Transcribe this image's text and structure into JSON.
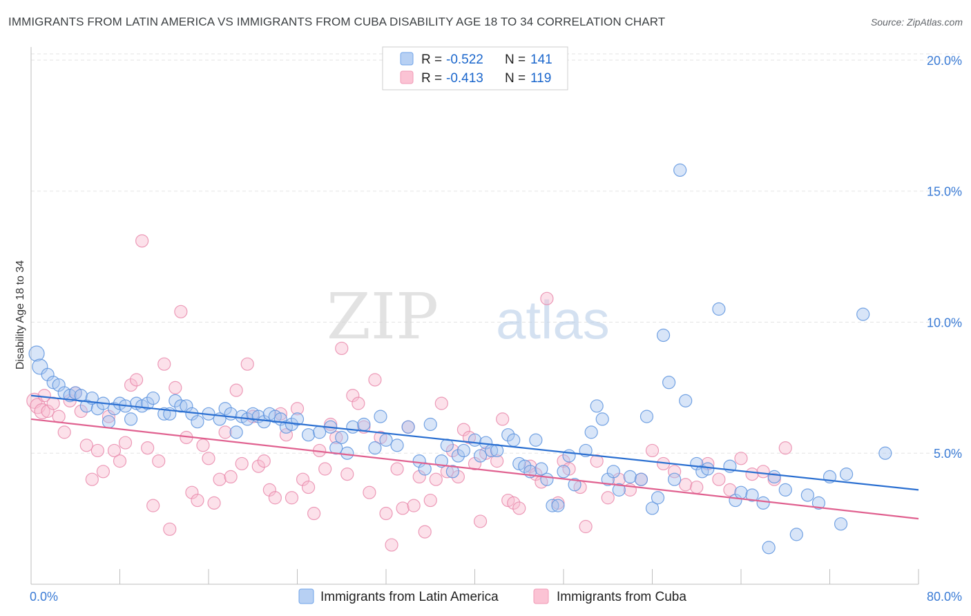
{
  "header": {
    "title": "IMMIGRANTS FROM LATIN AMERICA VS IMMIGRANTS FROM CUBA DISABILITY AGE 18 TO 34 CORRELATION CHART",
    "source": "Source: ZipAtlas.com"
  },
  "watermark": {
    "part1": "ZIP",
    "part2": "atlas"
  },
  "stats": [
    {
      "r_label": "R =",
      "r_value": "-0.522",
      "n_label": "N =",
      "n_value": "141"
    },
    {
      "r_label": "R =",
      "r_value": "-0.413",
      "n_label": "N =",
      "n_value": "119"
    }
  ],
  "chart_data": {
    "type": "scatter",
    "title": "IMMIGRANTS FROM LATIN AMERICA VS IMMIGRANTS FROM CUBA DISABILITY AGE 18 TO 34 CORRELATION CHART",
    "xlabel": "",
    "ylabel": "Disability Age 18 to 34",
    "xlim": [
      0,
      80
    ],
    "ylim": [
      0,
      20.5
    ],
    "x_tick_labels": [
      "0.0%",
      "80.0%"
    ],
    "y_ticks": [
      5,
      10,
      15,
      20
    ],
    "y_tick_labels": [
      "5.0%",
      "10.0%",
      "15.0%",
      "20.0%"
    ],
    "grid": true,
    "legend_position": "bottom-center",
    "colors": {
      "Immigrants from Latin America": "#6fa3e8",
      "Immigrants from Cuba": "#f09ab6",
      "trend_latin": "#2a6fd1",
      "trend_cuba": "#e0608f",
      "axis_text": "#3a7bd5"
    },
    "series": [
      {
        "name": "Immigrants from Latin America",
        "trend": [
          [
            0,
            7.2
          ],
          [
            80,
            3.6
          ]
        ],
        "points": [
          [
            0.5,
            8.8
          ],
          [
            0.8,
            8.3
          ],
          [
            1.5,
            8.0
          ],
          [
            2.0,
            7.7
          ],
          [
            2.5,
            7.6
          ],
          [
            3.0,
            7.3
          ],
          [
            3.5,
            7.2
          ],
          [
            4.0,
            7.3
          ],
          [
            4.5,
            7.2
          ],
          [
            5.0,
            6.8
          ],
          [
            5.5,
            7.1
          ],
          [
            6.0,
            6.7
          ],
          [
            6.5,
            6.9
          ],
          [
            7.0,
            6.2
          ],
          [
            7.5,
            6.7
          ],
          [
            8.0,
            6.9
          ],
          [
            8.5,
            6.8
          ],
          [
            9.0,
            6.3
          ],
          [
            9.5,
            6.9
          ],
          [
            10.0,
            6.8
          ],
          [
            10.5,
            6.9
          ],
          [
            11.0,
            7.1
          ],
          [
            12.0,
            6.5
          ],
          [
            12.5,
            6.5
          ],
          [
            13.0,
            7.0
          ],
          [
            13.5,
            6.8
          ],
          [
            14.0,
            6.8
          ],
          [
            14.5,
            6.5
          ],
          [
            15.0,
            6.2
          ],
          [
            16.0,
            6.5
          ],
          [
            17.0,
            6.3
          ],
          [
            17.5,
            6.7
          ],
          [
            18.0,
            6.5
          ],
          [
            18.5,
            5.8
          ],
          [
            19.0,
            6.4
          ],
          [
            19.5,
            6.3
          ],
          [
            20.0,
            6.5
          ],
          [
            20.5,
            6.4
          ],
          [
            21.0,
            6.2
          ],
          [
            21.5,
            6.5
          ],
          [
            22.0,
            6.4
          ],
          [
            22.5,
            6.3
          ],
          [
            23.0,
            6.0
          ],
          [
            23.5,
            6.1
          ],
          [
            24.0,
            6.3
          ],
          [
            25.0,
            5.7
          ],
          [
            26.0,
            5.8
          ],
          [
            27.0,
            6.0
          ],
          [
            27.5,
            5.2
          ],
          [
            28.0,
            5.6
          ],
          [
            28.5,
            5.0
          ],
          [
            29.0,
            6.0
          ],
          [
            30.0,
            6.1
          ],
          [
            31.0,
            5.2
          ],
          [
            31.5,
            6.4
          ],
          [
            32.0,
            5.5
          ],
          [
            33.0,
            5.3
          ],
          [
            34.0,
            6.0
          ],
          [
            35.0,
            4.7
          ],
          [
            35.5,
            4.4
          ],
          [
            36.0,
            6.1
          ],
          [
            37.0,
            4.7
          ],
          [
            37.5,
            5.3
          ],
          [
            38.0,
            4.3
          ],
          [
            38.5,
            4.9
          ],
          [
            39.0,
            5.1
          ],
          [
            40.0,
            5.5
          ],
          [
            40.5,
            4.9
          ],
          [
            41.0,
            5.4
          ],
          [
            41.5,
            5.1
          ],
          [
            42.0,
            5.1
          ],
          [
            43.0,
            5.7
          ],
          [
            43.5,
            5.5
          ],
          [
            44.0,
            4.6
          ],
          [
            44.5,
            4.5
          ],
          [
            45.0,
            4.3
          ],
          [
            45.5,
            5.5
          ],
          [
            46.0,
            4.4
          ],
          [
            46.5,
            4.0
          ],
          [
            47.0,
            3.0
          ],
          [
            47.5,
            3.0
          ],
          [
            48.0,
            4.3
          ],
          [
            48.5,
            4.9
          ],
          [
            49.0,
            3.8
          ],
          [
            50.0,
            5.1
          ],
          [
            50.5,
            5.8
          ],
          [
            51.0,
            6.8
          ],
          [
            51.5,
            6.3
          ],
          [
            52.0,
            4.0
          ],
          [
            52.5,
            4.3
          ],
          [
            53.0,
            3.6
          ],
          [
            54.0,
            4.1
          ],
          [
            55.0,
            4.0
          ],
          [
            55.5,
            6.4
          ],
          [
            56.0,
            2.9
          ],
          [
            56.5,
            3.3
          ],
          [
            57.0,
            9.5
          ],
          [
            57.5,
            7.7
          ],
          [
            58.0,
            4.0
          ],
          [
            58.5,
            15.8
          ],
          [
            59.0,
            7.0
          ],
          [
            60.0,
            4.6
          ],
          [
            60.5,
            4.3
          ],
          [
            61.0,
            4.4
          ],
          [
            62.0,
            10.5
          ],
          [
            63.0,
            4.5
          ],
          [
            63.5,
            3.2
          ],
          [
            64.0,
            3.5
          ],
          [
            65.0,
            3.4
          ],
          [
            66.0,
            3.1
          ],
          [
            66.5,
            1.4
          ],
          [
            67.0,
            4.1
          ],
          [
            68.0,
            3.6
          ],
          [
            69.0,
            1.9
          ],
          [
            70.0,
            3.4
          ],
          [
            71.0,
            3.1
          ],
          [
            72.0,
            4.1
          ],
          [
            73.0,
            2.3
          ],
          [
            73.5,
            4.2
          ],
          [
            75.0,
            10.3
          ],
          [
            77.0,
            5.0
          ]
        ]
      },
      {
        "name": "Immigrants from Cuba",
        "trend": [
          [
            0,
            6.3
          ],
          [
            80,
            2.5
          ]
        ],
        "points": [
          [
            0.3,
            7.0
          ],
          [
            0.6,
            6.8
          ],
          [
            1.0,
            6.6
          ],
          [
            1.2,
            7.2
          ],
          [
            1.5,
            6.6
          ],
          [
            2.0,
            6.9
          ],
          [
            2.5,
            6.4
          ],
          [
            3.0,
            5.8
          ],
          [
            3.5,
            7.0
          ],
          [
            4.0,
            7.3
          ],
          [
            4.5,
            6.6
          ],
          [
            5.0,
            5.3
          ],
          [
            5.5,
            4.0
          ],
          [
            6.0,
            5.1
          ],
          [
            6.5,
            4.3
          ],
          [
            7.0,
            6.4
          ],
          [
            7.5,
            5.1
          ],
          [
            8.0,
            4.7
          ],
          [
            8.5,
            5.4
          ],
          [
            9.0,
            7.6
          ],
          [
            9.5,
            7.8
          ],
          [
            10.0,
            13.1
          ],
          [
            10.5,
            5.2
          ],
          [
            11.0,
            3.0
          ],
          [
            11.5,
            4.7
          ],
          [
            12.0,
            8.4
          ],
          [
            12.5,
            2.1
          ],
          [
            13.0,
            7.5
          ],
          [
            13.5,
            10.4
          ],
          [
            14.0,
            5.6
          ],
          [
            14.5,
            3.5
          ],
          [
            15.0,
            3.2
          ],
          [
            15.5,
            5.3
          ],
          [
            16.0,
            4.8
          ],
          [
            16.5,
            3.1
          ],
          [
            17.0,
            4.0
          ],
          [
            17.5,
            5.8
          ],
          [
            18.0,
            4.1
          ],
          [
            18.5,
            7.4
          ],
          [
            19.0,
            4.6
          ],
          [
            19.5,
            8.4
          ],
          [
            20.0,
            6.4
          ],
          [
            20.5,
            4.5
          ],
          [
            21.0,
            4.7
          ],
          [
            21.5,
            3.6
          ],
          [
            22.0,
            3.3
          ],
          [
            22.5,
            6.5
          ],
          [
            23.0,
            5.7
          ],
          [
            23.5,
            3.3
          ],
          [
            24.0,
            6.7
          ],
          [
            24.5,
            4.0
          ],
          [
            25.0,
            3.7
          ],
          [
            25.5,
            2.7
          ],
          [
            26.0,
            5.1
          ],
          [
            26.5,
            4.4
          ],
          [
            27.0,
            6.1
          ],
          [
            27.5,
            5.6
          ],
          [
            28.0,
            9.0
          ],
          [
            28.5,
            4.2
          ],
          [
            29.0,
            7.2
          ],
          [
            29.5,
            6.9
          ],
          [
            30.0,
            6.0
          ],
          [
            30.5,
            3.5
          ],
          [
            31.0,
            7.8
          ],
          [
            31.5,
            5.6
          ],
          [
            32.0,
            2.7
          ],
          [
            32.5,
            1.5
          ],
          [
            33.0,
            4.4
          ],
          [
            33.5,
            2.9
          ],
          [
            34.0,
            6.0
          ],
          [
            34.5,
            3.0
          ],
          [
            35.0,
            4.1
          ],
          [
            35.5,
            2.0
          ],
          [
            36.0,
            3.2
          ],
          [
            36.5,
            4.0
          ],
          [
            37.0,
            6.9
          ],
          [
            37.5,
            4.3
          ],
          [
            38.0,
            5.1
          ],
          [
            38.5,
            4.1
          ],
          [
            39.0,
            5.9
          ],
          [
            39.5,
            5.6
          ],
          [
            40.0,
            4.6
          ],
          [
            40.5,
            2.4
          ],
          [
            41.0,
            5.0
          ],
          [
            42.0,
            4.7
          ],
          [
            42.5,
            6.3
          ],
          [
            43.0,
            3.2
          ],
          [
            43.5,
            3.1
          ],
          [
            44.0,
            2.9
          ],
          [
            45.0,
            4.5
          ],
          [
            45.5,
            4.2
          ],
          [
            46.0,
            3.9
          ],
          [
            46.5,
            10.9
          ],
          [
            47.5,
            3.1
          ],
          [
            48.0,
            4.7
          ],
          [
            48.5,
            4.4
          ],
          [
            49.5,
            3.7
          ],
          [
            50.0,
            2.2
          ],
          [
            51.0,
            4.7
          ],
          [
            52.0,
            3.3
          ],
          [
            53.0,
            4.0
          ],
          [
            54.0,
            3.6
          ],
          [
            55.0,
            4.0
          ],
          [
            56.0,
            5.1
          ],
          [
            57.0,
            4.6
          ],
          [
            58.0,
            4.3
          ],
          [
            59.0,
            3.8
          ],
          [
            60.0,
            3.7
          ],
          [
            61.0,
            4.6
          ],
          [
            62.0,
            4.0
          ],
          [
            63.0,
            3.6
          ],
          [
            64.0,
            4.8
          ],
          [
            65.0,
            4.2
          ],
          [
            66.0,
            4.3
          ],
          [
            67.0,
            4.0
          ],
          [
            68.0,
            5.2
          ]
        ]
      }
    ]
  },
  "legend": {
    "items": [
      {
        "label": "Immigrants from Latin America"
      },
      {
        "label": "Immigrants from Cuba"
      }
    ]
  }
}
